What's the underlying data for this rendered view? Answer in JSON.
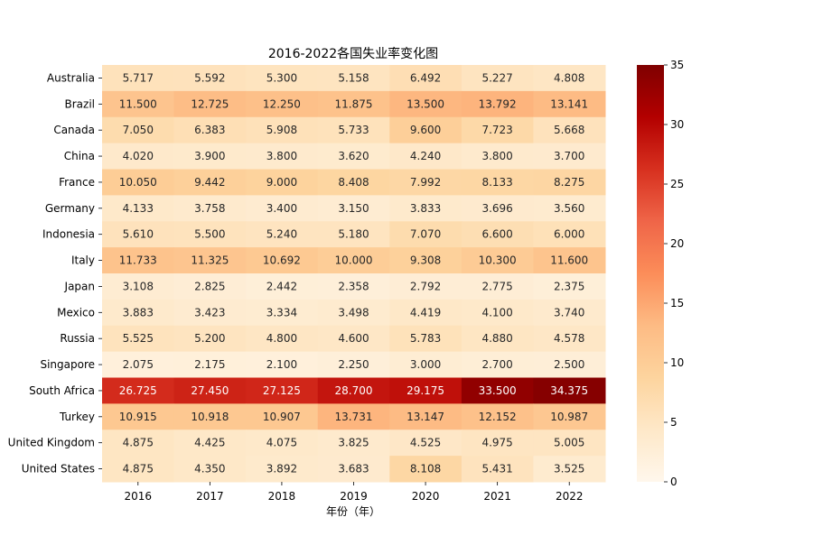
{
  "chart_data": {
    "type": "heatmap",
    "title": "2016-2022各国失业率变化图",
    "xlabel": "年份（年）",
    "ylabel": "",
    "x": [
      "2016",
      "2017",
      "2018",
      "2019",
      "2020",
      "2021",
      "2022"
    ],
    "y": [
      "Australia",
      "Brazil",
      "Canada",
      "China",
      "France",
      "Germany",
      "Indonesia",
      "Italy",
      "Japan",
      "Mexico",
      "Russia",
      "Singapore",
      "South Africa",
      "Turkey",
      "United Kingdom",
      "United States"
    ],
    "values": [
      [
        "5.717",
        "5.592",
        "5.300",
        "5.158",
        "6.492",
        "5.227",
        "4.808"
      ],
      [
        "11.500",
        "12.725",
        "12.250",
        "11.875",
        "13.500",
        "13.792",
        "13.141"
      ],
      [
        "7.050",
        "6.383",
        "5.908",
        "5.733",
        "9.600",
        "7.723",
        "5.668"
      ],
      [
        "4.020",
        "3.900",
        "3.800",
        "3.620",
        "4.240",
        "3.800",
        "3.700"
      ],
      [
        "10.050",
        "9.442",
        "9.000",
        "8.408",
        "7.992",
        "8.133",
        "8.275"
      ],
      [
        "4.133",
        "3.758",
        "3.400",
        "3.150",
        "3.833",
        "3.696",
        "3.560"
      ],
      [
        "5.610",
        "5.500",
        "5.240",
        "5.180",
        "7.070",
        "6.600",
        "6.000"
      ],
      [
        "11.733",
        "11.325",
        "10.692",
        "10.000",
        "9.308",
        "10.300",
        "11.600"
      ],
      [
        "3.108",
        "2.825",
        "2.442",
        "2.358",
        "2.792",
        "2.775",
        "2.375"
      ],
      [
        "3.883",
        "3.423",
        "3.334",
        "3.498",
        "4.419",
        "4.100",
        "3.740"
      ],
      [
        "5.525",
        "5.200",
        "4.800",
        "4.600",
        "5.783",
        "4.880",
        "4.578"
      ],
      [
        "2.075",
        "2.175",
        "2.100",
        "2.250",
        "3.000",
        "2.700",
        "2.500"
      ],
      [
        "26.725",
        "27.450",
        "27.125",
        "28.700",
        "29.175",
        "33.500",
        "34.375"
      ],
      [
        "10.915",
        "10.918",
        "10.907",
        "13.731",
        "13.147",
        "12.152",
        "10.987"
      ],
      [
        "4.875",
        "4.425",
        "4.075",
        "3.825",
        "4.525",
        "4.975",
        "5.005"
      ],
      [
        "4.875",
        "4.350",
        "3.892",
        "3.683",
        "8.108",
        "5.431",
        "3.525"
      ]
    ],
    "colormap": "OrRd",
    "colorbar": {
      "range": [
        0,
        35
      ],
      "ticks": [
        "0",
        "5",
        "10",
        "15",
        "20",
        "25",
        "30",
        "35"
      ]
    },
    "grid": false,
    "annotations": "cell values shown in each cell"
  }
}
